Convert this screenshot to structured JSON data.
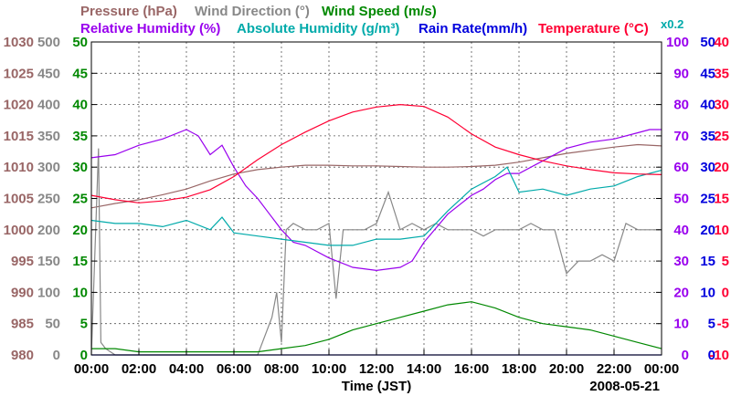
{
  "chart_data": {
    "type": "line",
    "date": "2008-05-21",
    "xlabel": "Time (JST)",
    "x_ticks": [
      "00:00",
      "02:00",
      "04:00",
      "06:00",
      "08:00",
      "10:00",
      "12:00",
      "14:00",
      "16:00",
      "18:00",
      "20:00",
      "22:00",
      "00:00"
    ],
    "xlim": [
      0,
      24
    ],
    "grid": true,
    "legend": [
      {
        "label": "Pressure (hPa)",
        "color": "#996666"
      },
      {
        "label": "Wind Direction (°)",
        "color": "#888888"
      },
      {
        "label": "Wind Speed (m/s)",
        "color": "#008800"
      },
      {
        "label": "Relative Humidity (%)",
        "color": "#9900ee"
      },
      {
        "label": "Absolute Humidity (g/m³)",
        "color": "#00aaaa"
      },
      {
        "label": "Rain Rate(mm/h)",
        "color": "#0000dd"
      },
      {
        "label": "Temperature (°C)",
        "color": "#ff0033"
      },
      {
        "label": "x0.2",
        "color": "#00aaaa"
      }
    ],
    "axes": [
      {
        "name": "Pressure (hPa)",
        "side": "left",
        "color": "#996666",
        "range": [
          980,
          1030
        ],
        "ticks": [
          "980",
          "985",
          "990",
          "995",
          "1000",
          "1005",
          "1010",
          "1015",
          "1020",
          "1025",
          "1030"
        ]
      },
      {
        "name": "Wind Direction (°)",
        "side": "left",
        "color": "#888888",
        "range": [
          0,
          500
        ],
        "ticks": [
          "0",
          "50",
          "100",
          "150",
          "200",
          "250",
          "300",
          "350",
          "400",
          "450",
          "500"
        ]
      },
      {
        "name": "Wind Speed (m/s)",
        "side": "left",
        "color": "#008800",
        "range": [
          0,
          50
        ],
        "ticks": [
          "0",
          "5",
          "10",
          "15",
          "20",
          "25",
          "30",
          "35",
          "40",
          "45",
          "50"
        ]
      },
      {
        "name": "Relative Humidity (%)",
        "side": "right",
        "color": "#9900ee",
        "range": [
          0,
          100
        ],
        "ticks": [
          "0",
          "10",
          "20",
          "30",
          "40",
          "50",
          "60",
          "70",
          "80",
          "90",
          "100"
        ]
      },
      {
        "name": "Rain Rate(mm/h)",
        "side": "right",
        "color": "#0000dd",
        "range": [
          0,
          50
        ],
        "ticks": [
          "0",
          "5",
          "10",
          "15",
          "20",
          "25",
          "30",
          "35",
          "40",
          "45",
          "50"
        ]
      },
      {
        "name": "Temperature (°C)",
        "side": "right",
        "color": "#ff0033",
        "range": [
          -10,
          40
        ],
        "ticks": [
          "-10",
          "-5",
          "0",
          "5",
          "10",
          "15",
          "20",
          "25",
          "30",
          "35",
          "40"
        ]
      }
    ],
    "series": [
      {
        "name": "Pressure (hPa)",
        "color": "#996666",
        "axis": "Pressure (hPa)",
        "x": [
          0,
          1,
          2,
          3,
          4,
          5,
          6,
          7,
          8,
          9,
          10,
          11,
          12,
          13,
          14,
          15,
          16,
          17,
          18,
          19,
          20,
          21,
          22,
          23,
          24
        ],
        "y": [
          1003.5,
          1004.2,
          1004.8,
          1005.6,
          1006.5,
          1007.8,
          1008.9,
          1009.6,
          1010,
          1010.3,
          1010.3,
          1010.2,
          1010.2,
          1010.1,
          1010,
          1010,
          1010.1,
          1010.3,
          1010.8,
          1011.5,
          1012.2,
          1012.7,
          1013.2,
          1013.6,
          1013.4
        ]
      },
      {
        "name": "Wind Direction (°)",
        "color": "#888888",
        "axis": "Wind Direction (°)",
        "x": [
          0,
          0.3,
          0.4,
          0.6,
          1,
          2,
          3,
          4,
          5,
          6,
          6.5,
          7,
          7.6,
          7.8,
          8,
          8.2,
          8.5,
          9,
          9.5,
          10,
          10.3,
          10.6,
          11,
          11.5,
          12,
          12.5,
          13,
          13.5,
          14,
          14.5,
          15,
          15.5,
          16,
          16.5,
          17,
          17.5,
          18,
          18.5,
          19,
          19.5,
          20,
          20.5,
          21,
          21.5,
          22,
          22.5,
          23,
          23.5,
          24
        ],
        "y": [
          0,
          330,
          20,
          10,
          0,
          0,
          0,
          0,
          0,
          0,
          0,
          0,
          60,
          100,
          20,
          200,
          210,
          200,
          200,
          210,
          90,
          200,
          200,
          200,
          210,
          260,
          200,
          210,
          200,
          210,
          200,
          200,
          200,
          190,
          200,
          200,
          200,
          210,
          200,
          200,
          130,
          150,
          150,
          160,
          150,
          210,
          200,
          200,
          200
        ]
      },
      {
        "name": "Wind Speed (m/s)",
        "color": "#008800",
        "axis": "Wind Speed (m/s)",
        "x": [
          0,
          1,
          2,
          3,
          4,
          5,
          6,
          7,
          8,
          9,
          10,
          11,
          12,
          13,
          14,
          15,
          16,
          17,
          18,
          19,
          20,
          21,
          22,
          23,
          24
        ],
        "y": [
          1,
          1,
          0.5,
          0.5,
          0.5,
          0.5,
          0.5,
          0.5,
          1,
          1.5,
          2.5,
          4,
          5,
          6,
          7,
          8,
          8.5,
          7.5,
          6,
          5,
          4.5,
          4,
          3,
          2,
          1
        ]
      },
      {
        "name": "Relative Humidity (%)",
        "color": "#9900ee",
        "axis": "Relative Humidity (%)",
        "x": [
          0,
          1,
          2,
          3,
          4,
          4.5,
          5,
          5.5,
          6,
          6.5,
          7,
          7.5,
          8,
          8.5,
          9,
          10,
          11,
          12,
          13,
          13.5,
          14,
          15,
          16,
          16.5,
          17,
          17.5,
          18,
          19,
          20,
          21,
          22,
          23,
          23.5,
          24
        ],
        "y": [
          63,
          64,
          67,
          69,
          72,
          70,
          64,
          67,
          60,
          54,
          50,
          45,
          40,
          36,
          35,
          31,
          28,
          27,
          28,
          30,
          36,
          45,
          51,
          53,
          56,
          58,
          58,
          62,
          66,
          68,
          69,
          71,
          72,
          72
        ]
      },
      {
        "name": "Absolute Humidity (g/m³)",
        "color": "#00aaaa",
        "axis": "Relative Humidity (%)",
        "x": [
          0,
          1,
          2,
          3,
          4,
          5,
          5.5,
          6,
          7,
          8,
          9,
          10,
          11,
          12,
          13,
          14,
          15,
          16,
          17,
          17.5,
          18,
          19,
          20,
          21,
          22,
          23,
          24
        ],
        "y": [
          43,
          42,
          42,
          41,
          43,
          40,
          44,
          39,
          38,
          37,
          36,
          35,
          35,
          37,
          37,
          38,
          46,
          53,
          57,
          60,
          52,
          53,
          51,
          53,
          54,
          57,
          59
        ]
      },
      {
        "name": "Rain Rate(mm/h)",
        "color": "#0000dd",
        "axis": "Rain Rate(mm/h)",
        "x": [
          0,
          24
        ],
        "y": [
          0,
          0
        ]
      },
      {
        "name": "Temperature (°C)",
        "color": "#ff0033",
        "axis": "Temperature (°C)",
        "x": [
          0,
          1,
          2,
          3,
          4,
          5,
          6,
          7,
          8,
          9,
          10,
          11,
          12,
          13,
          14,
          15,
          16,
          17,
          18,
          19,
          20,
          21,
          22,
          23,
          24
        ],
        "y": [
          15.5,
          14.8,
          14.3,
          14.6,
          15.2,
          16.4,
          18.5,
          21.2,
          23.6,
          25.6,
          27.4,
          28.8,
          29.6,
          30,
          29.7,
          28,
          25.3,
          23.2,
          22,
          21,
          20.2,
          19.6,
          19.1,
          18.9,
          18.8
        ]
      }
    ]
  }
}
